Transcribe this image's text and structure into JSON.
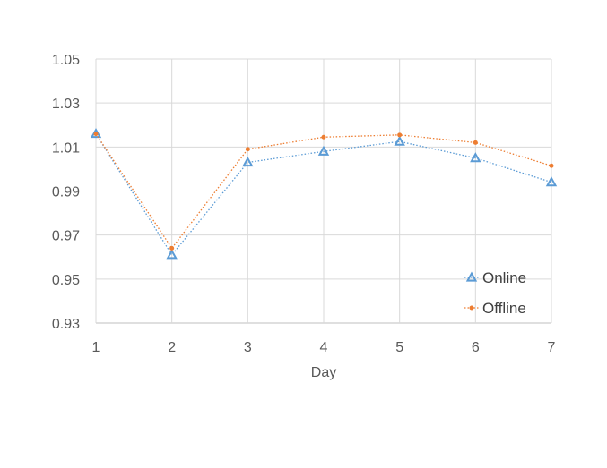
{
  "chart_data": {
    "type": "line",
    "title": "",
    "xlabel": "Day",
    "ylabel": "",
    "categories": [
      "1",
      "2",
      "3",
      "4",
      "5",
      "6",
      "7"
    ],
    "x": [
      1,
      2,
      3,
      4,
      5,
      6,
      7
    ],
    "ylim": [
      0.93,
      1.05
    ],
    "yticks": [
      "0.93",
      "0.95",
      "0.97",
      "0.99",
      "1.01",
      "1.03",
      "1.05"
    ],
    "ytick_values": [
      0.93,
      0.95,
      0.97,
      0.99,
      1.01,
      1.03,
      1.05
    ],
    "grid": true,
    "legend_position": "bottom-right",
    "series": [
      {
        "name": "Online",
        "values": [
          1.016,
          0.961,
          1.003,
          1.008,
          1.0125,
          1.005,
          0.994
        ],
        "color": "#5b9bd5",
        "marker": "triangle",
        "line_style": "dotted"
      },
      {
        "name": "Offline",
        "values": [
          1.016,
          0.964,
          1.009,
          1.0145,
          1.0155,
          1.012,
          1.0015
        ],
        "color": "#ed7d31",
        "marker": "circle",
        "line_style": "dotted"
      }
    ]
  }
}
